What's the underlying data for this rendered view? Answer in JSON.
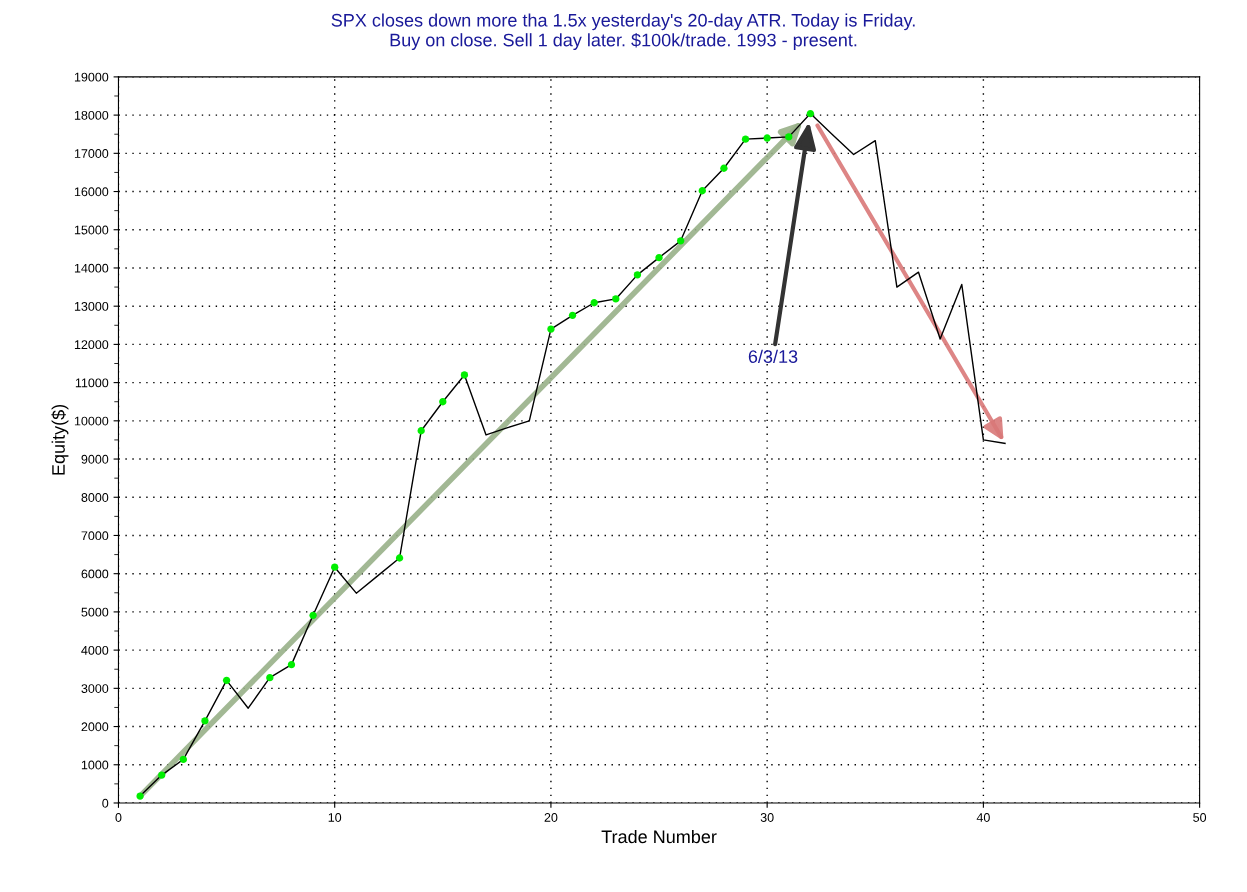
{
  "chart_data": {
    "type": "line",
    "title": "SPX closes down more tha 1.5x yesterday's 20-day ATR. Today is Friday.\nBuy on close. Sell 1 day later. $100k/trade. 1993 - present.",
    "xlabel": "Trade Number",
    "ylabel": "Equity($)",
    "series": [
      {
        "color": "#000000",
        "marker": "none",
        "x": [
          1,
          2,
          3,
          4,
          5,
          6,
          7,
          8,
          9,
          10,
          11,
          12,
          13,
          14,
          15,
          16,
          17,
          18,
          19,
          20,
          21,
          22,
          23,
          24,
          25,
          26,
          27,
          28,
          29,
          30,
          31,
          32,
          33,
          34,
          35,
          36,
          37,
          38,
          39,
          40,
          41
        ],
        "values": [
          180,
          730,
          1140,
          2150,
          3210,
          2480,
          3280,
          3620,
          4910,
          6170,
          5490,
          5950,
          6410,
          9740,
          10500,
          11200,
          9630,
          9820,
          10000,
          12400,
          12760,
          13090,
          13190,
          13820,
          14270,
          14710,
          16020,
          16610,
          17370,
          17400,
          17430,
          18040,
          17500,
          16970,
          17330,
          13500,
          13890,
          12140,
          13570,
          9500,
          9410
        ]
      },
      {
        "type": "scatter",
        "color": "#00ee00",
        "marker": "circle",
        "x": [
          1,
          2,
          3,
          4,
          5,
          7,
          8,
          9,
          10,
          13,
          14,
          15,
          16,
          20,
          21,
          22,
          23,
          24,
          25,
          26,
          27,
          28,
          29,
          30,
          31,
          32
        ],
        "values": [
          180,
          730,
          1140,
          2150,
          3210,
          3280,
          3620,
          4910,
          6170,
          6410,
          9740,
          10500,
          11200,
          12400,
          12760,
          13090,
          13190,
          13820,
          14270,
          14710,
          16020,
          16610,
          17370,
          17400,
          17430,
          18040
        ]
      }
    ],
    "annotations": [
      "6/3/13"
    ],
    "xlim": [
      0,
      50
    ],
    "xticks": [
      0,
      10,
      20,
      30,
      40,
      50
    ],
    "ylim": [
      0,
      19000
    ],
    "yticks": [
      0,
      1000,
      2000,
      3000,
      4000,
      5000,
      6000,
      7000,
      8000,
      9000,
      10000,
      11000,
      12000,
      13000,
      14000,
      15000,
      16000,
      17000,
      18000,
      19000
    ],
    "grid": true,
    "legend": false
  }
}
